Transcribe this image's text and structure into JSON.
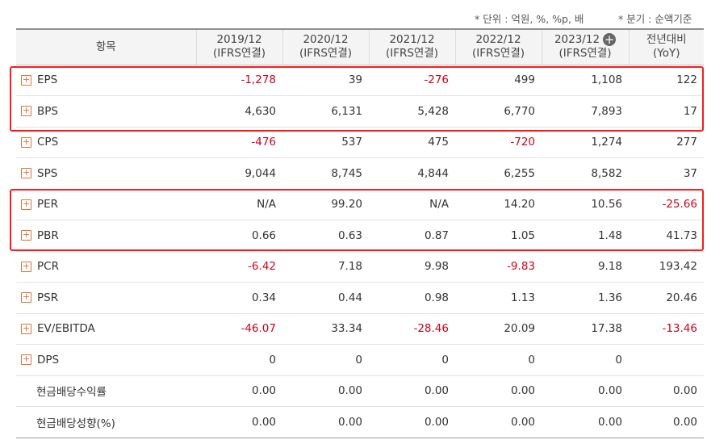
{
  "notes": {
    "unit": "* 단위 : 억원, %, %p, 배",
    "basis": "* 분기 : 순액기준"
  },
  "header": {
    "item": "항목",
    "periods": [
      {
        "year": "2019/12",
        "sub": "(IFRS연결)"
      },
      {
        "year": "2020/12",
        "sub": "(IFRS연결)"
      },
      {
        "year": "2021/12",
        "sub": "(IFRS연결)"
      },
      {
        "year": "2022/12",
        "sub": "(IFRS연결)"
      },
      {
        "year": "2023/12",
        "sub": "(IFRS연결)"
      }
    ],
    "yoy": {
      "title": "전년대비",
      "sub": "(YoY)"
    },
    "add_column_icon": "plus-circle-icon"
  },
  "rows": [
    {
      "label": "EPS",
      "expandable": true,
      "values": [
        "-1,278",
        "39",
        "-276",
        "499",
        "1,108"
      ],
      "yoy": "122"
    },
    {
      "label": "BPS",
      "expandable": true,
      "values": [
        "4,630",
        "6,131",
        "5,428",
        "6,770",
        "7,893"
      ],
      "yoy": "17"
    },
    {
      "label": "CPS",
      "expandable": true,
      "values": [
        "-476",
        "537",
        "475",
        "-720",
        "1,274"
      ],
      "yoy": "277"
    },
    {
      "label": "SPS",
      "expandable": true,
      "values": [
        "9,044",
        "8,745",
        "4,844",
        "6,255",
        "8,582"
      ],
      "yoy": "37"
    },
    {
      "label": "PER",
      "expandable": true,
      "values": [
        "N/A",
        "99.20",
        "N/A",
        "14.20",
        "10.56"
      ],
      "yoy": "-25.66"
    },
    {
      "label": "PBR",
      "expandable": true,
      "values": [
        "0.66",
        "0.63",
        "0.87",
        "1.05",
        "1.48"
      ],
      "yoy": "41.73"
    },
    {
      "label": "PCR",
      "expandable": true,
      "values": [
        "-6.42",
        "7.18",
        "9.98",
        "-9.83",
        "9.18"
      ],
      "yoy": "193.42"
    },
    {
      "label": "PSR",
      "expandable": true,
      "values": [
        "0.34",
        "0.44",
        "0.98",
        "1.13",
        "1.36"
      ],
      "yoy": "20.46"
    },
    {
      "label": "EV/EBITDA",
      "expandable": true,
      "values": [
        "-46.07",
        "33.34",
        "-28.46",
        "20.09",
        "17.38"
      ],
      "yoy": "-13.46"
    },
    {
      "label": "DPS",
      "expandable": true,
      "values": [
        "0",
        "0",
        "0",
        "0",
        "0"
      ],
      "yoy": ""
    },
    {
      "label": "현금배당수익률",
      "expandable": false,
      "values": [
        "0.00",
        "0.00",
        "0.00",
        "0.00",
        "0.00"
      ],
      "yoy": "0.00"
    },
    {
      "label": "현금배당성향(%)",
      "expandable": false,
      "values": [
        "0.00",
        "0.00",
        "0.00",
        "0.00",
        "0.00"
      ],
      "yoy": "0.00"
    }
  ],
  "colors": {
    "negative": "#d0021b",
    "highlight": "#ff1a1a",
    "expand_icon": "#e0733a"
  }
}
